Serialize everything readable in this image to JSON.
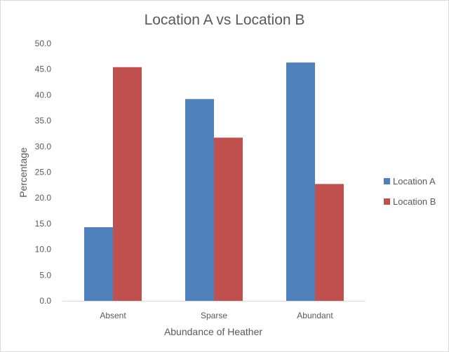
{
  "chart_data": {
    "type": "bar",
    "title": "Location A vs Location B",
    "xlabel": "Abundance of Heather",
    "ylabel": "Percentage",
    "categories": [
      "Absent",
      "Sparse",
      "Abundant"
    ],
    "series": [
      {
        "name": "Location A",
        "color": "#4f81bd",
        "values": [
          14.3,
          39.2,
          46.3
        ]
      },
      {
        "name": "Location B",
        "color": "#c0504d",
        "values": [
          45.4,
          31.7,
          22.7
        ]
      }
    ],
    "ylim": [
      0,
      50
    ],
    "y_ticks": [
      "0.0",
      "5.0",
      "10.0",
      "15.0",
      "20.0",
      "25.0",
      "30.0",
      "35.0",
      "40.0",
      "45.0",
      "50.0"
    ],
    "grid": false,
    "legend_position": "right"
  }
}
